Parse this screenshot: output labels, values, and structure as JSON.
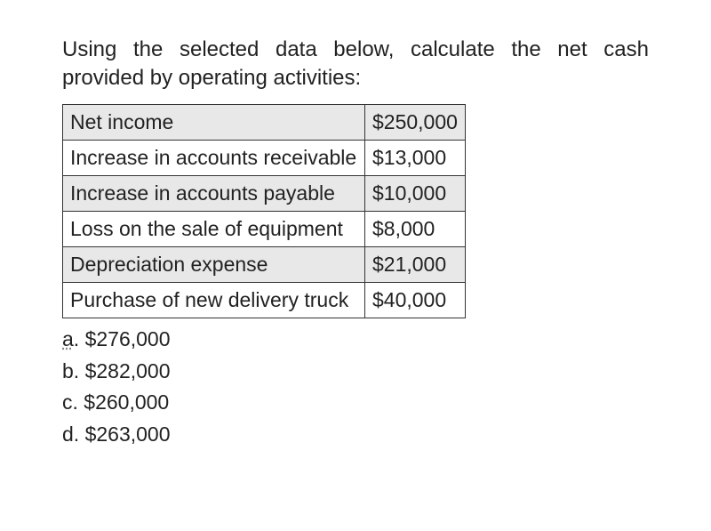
{
  "question": "Using the selected data below, calculate the net cash provided by operating activities:",
  "table": {
    "rows": [
      {
        "label": "Net income",
        "value": "$250,000",
        "shaded": true
      },
      {
        "label": "Increase in accounts receivable",
        "value": "$13,000",
        "shaded": false
      },
      {
        "label": "Increase in accounts payable",
        "value": "$10,000",
        "shaded": true
      },
      {
        "label": "Loss on the sale of equipment",
        "value": "$8,000",
        "shaded": false
      },
      {
        "label": "Depreciation expense",
        "value": "$21,000",
        "shaded": true
      },
      {
        "label": "Purchase of new delivery truck",
        "value": "$40,000",
        "shaded": false
      }
    ]
  },
  "options": [
    {
      "letter": "a",
      "text": "$276,000",
      "underlined": true
    },
    {
      "letter": "b",
      "text": "$282,000",
      "underlined": false
    },
    {
      "letter": "c",
      "text": "$260,000",
      "underlined": false
    },
    {
      "letter": "d",
      "text": "$263,000",
      "underlined": false
    }
  ],
  "styling": {
    "background": "#ffffff",
    "text_color": "#222",
    "border_color": "#333",
    "shaded_bg": "#e8e8e8",
    "font_family": "Segoe UI, Arial, sans-serif",
    "question_fontsize": 24,
    "table_fontsize": 23,
    "option_fontsize": 23
  }
}
